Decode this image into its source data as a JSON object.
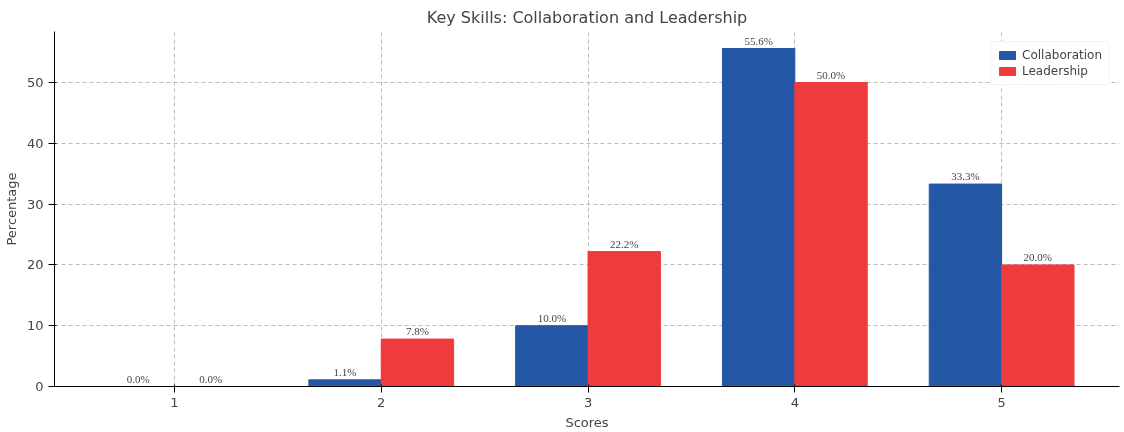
{
  "chart_data": {
    "type": "bar",
    "title": "Key Skills: Collaboration and Leadership",
    "xlabel": "Scores",
    "ylabel": "Percentage",
    "categories": [
      "1",
      "2",
      "3",
      "4",
      "5"
    ],
    "series": [
      {
        "name": "Collaboration",
        "color": "#2557a7",
        "values": [
          0.0,
          1.1,
          10.0,
          55.6,
          33.3
        ],
        "value_labels": [
          "0.0%",
          "1.1%",
          "10.0%",
          "55.6%",
          "33.3%"
        ]
      },
      {
        "name": "Leadership",
        "color": "#ee3b3d",
        "values": [
          0.0,
          7.8,
          22.2,
          50.0,
          20.0
        ],
        "value_labels": [
          "0.0%",
          "7.8%",
          "22.2%",
          "50.0%",
          "20.0%"
        ]
      }
    ],
    "ylim": [
      0,
      58.4
    ],
    "yticks": [
      0,
      10,
      20,
      30,
      40,
      50
    ],
    "grid": true,
    "legend": "top right"
  }
}
